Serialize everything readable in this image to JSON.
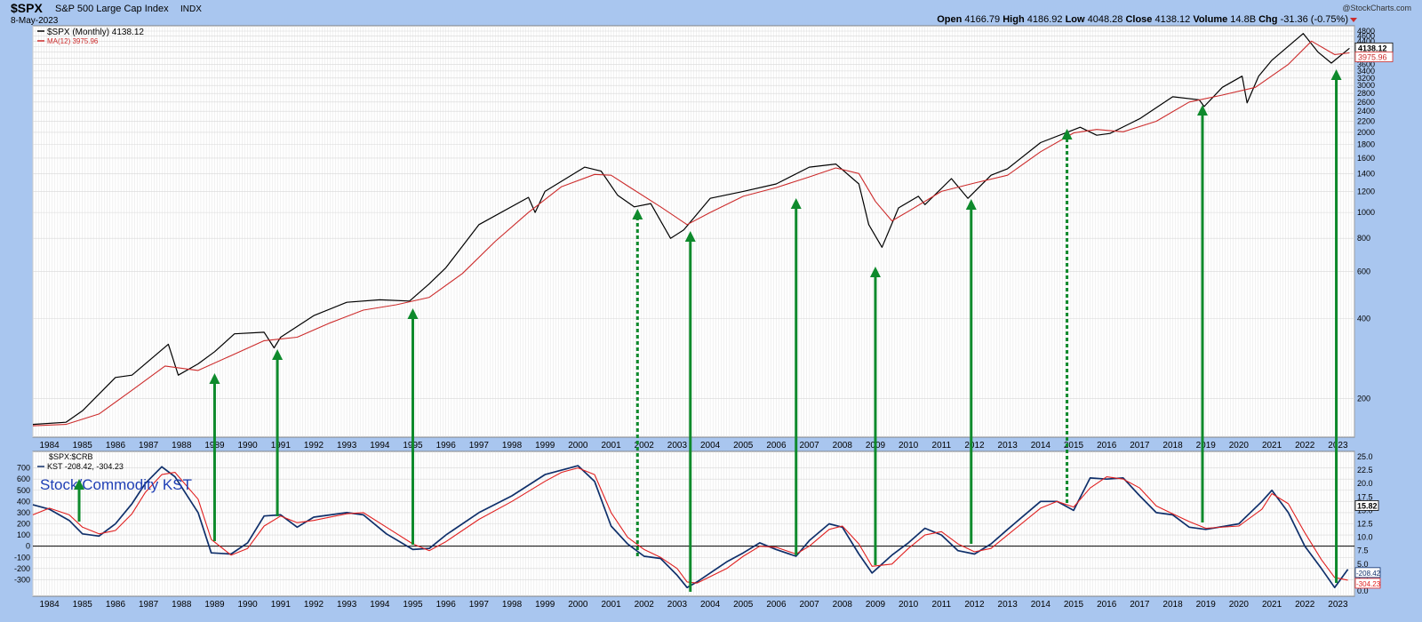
{
  "header": {
    "symbol": "$SPX",
    "name": "S&P 500 Large Cap Index",
    "exchange": "INDX",
    "date": "8-May-2023",
    "copyright": "@StockCharts.com",
    "open_label": "Open",
    "open": "4166.79",
    "high_label": "High",
    "high": "4186.92",
    "low_label": "Low",
    "low": "4048.28",
    "close_label": "Close",
    "close": "4138.12",
    "volume_label": "Volume",
    "volume": "14.8B",
    "chg_label": "Chg",
    "chg": "-31.36 (-0.75%)"
  },
  "colors": {
    "background": "#a9c6ef",
    "plot_bg": "#ffffff",
    "grid": "#d7d7d7",
    "price": "#000000",
    "ma": "#cc2b2b",
    "kst": "#0f2f6a",
    "kst_signal": "#e02020",
    "arrow": "#0e8a2c",
    "annotation": "#1f3fb5"
  },
  "chart_data": [
    {
      "type": "line",
      "panel": "price",
      "scale": "log",
      "legend": [
        {
          "label": "$SPX (Monthly) 4138.12",
          "color": "#000000"
        },
        {
          "label": "MA(12) 3975.96",
          "color": "#cc2b2b"
        }
      ],
      "ylim": [
        150,
        4800
      ],
      "yticks": [
        200,
        400,
        600,
        800,
        1000,
        1200,
        1400,
        1600,
        1800,
        2000,
        2200,
        2400,
        2600,
        2800,
        3000,
        3200,
        3400,
        3600,
        3800,
        4000,
        4200,
        4400,
        4600,
        4800
      ],
      "last_value_tags": [
        {
          "value": "4138.12"
        },
        {
          "value": "3975.96"
        }
      ],
      "xlim": [
        1983.5,
        2023.5
      ],
      "x_tick_labels": [
        "1984",
        "1985",
        "1986",
        "1987",
        "1988",
        "1989",
        "1990",
        "1991",
        "1992",
        "1993",
        "1994",
        "1995",
        "1996",
        "1997",
        "1998",
        "1999",
        "2000",
        "2001",
        "2002",
        "2003",
        "2004",
        "2005",
        "2006",
        "2007",
        "2008",
        "2009",
        "2010",
        "2011",
        "2012",
        "2013",
        "2014",
        "2015",
        "2016",
        "2017",
        "2018",
        "2019",
        "2020",
        "2021",
        "2022",
        "2023"
      ],
      "series": [
        {
          "name": "$SPX (Monthly)",
          "x": [
            1983.5,
            1984.5,
            1985.0,
            1986.0,
            1986.5,
            1987.6,
            1987.9,
            1988.5,
            1989.0,
            1989.6,
            1990.5,
            1990.8,
            1991.0,
            1992.0,
            1993.0,
            1994.0,
            1994.9,
            1995.5,
            1996.0,
            1997.0,
            1998.5,
            1998.7,
            1999.0,
            2000.2,
            2000.7,
            2001.2,
            2001.7,
            2002.2,
            2002.8,
            2003.2,
            2004.0,
            2005.0,
            2006.0,
            2007.0,
            2007.8,
            2008.5,
            2008.8,
            2009.2,
            2009.7,
            2010.3,
            2010.5,
            2011.3,
            2011.8,
            2012.5,
            2013.0,
            2014.0,
            2015.2,
            2015.7,
            2016.1,
            2017.0,
            2018.0,
            2018.8,
            2018.95,
            2019.5,
            2020.1,
            2020.25,
            2020.6,
            2021.0,
            2021.95,
            2022.4,
            2022.8,
            2023.35
          ],
          "values": [
            160,
            163,
            180,
            240,
            245,
            320,
            245,
            270,
            300,
            350,
            355,
            310,
            340,
            410,
            460,
            470,
            465,
            540,
            620,
            900,
            1140,
            1000,
            1200,
            1480,
            1430,
            1160,
            1050,
            1080,
            800,
            860,
            1130,
            1200,
            1280,
            1480,
            1520,
            1280,
            900,
            740,
            1040,
            1150,
            1070,
            1340,
            1130,
            1380,
            1460,
            1830,
            2090,
            1950,
            1980,
            2250,
            2720,
            2650,
            2500,
            2950,
            3250,
            2580,
            3250,
            3730,
            4700,
            4000,
            3640,
            4138
          ]
        },
        {
          "name": "MA(12)",
          "x": [
            1983.5,
            1984.5,
            1985.5,
            1986.5,
            1987.5,
            1988.5,
            1989.5,
            1990.5,
            1991.5,
            1992.5,
            1993.5,
            1994.5,
            1995.5,
            1996.5,
            1997.5,
            1998.5,
            1999.5,
            2000.5,
            2001.0,
            2001.5,
            2002.5,
            2003.3,
            2004.0,
            2005.0,
            2006.0,
            2007.0,
            2007.8,
            2008.5,
            2009.0,
            2009.5,
            2010.0,
            2011.0,
            2012.0,
            2013.0,
            2014.0,
            2015.0,
            2015.7,
            2016.5,
            2017.5,
            2018.5,
            2019.5,
            2020.5,
            2021.5,
            2022.2,
            2022.9,
            2023.35
          ],
          "values": [
            158,
            160,
            175,
            215,
            265,
            255,
            290,
            330,
            340,
            385,
            430,
            450,
            480,
            590,
            780,
            1000,
            1250,
            1390,
            1380,
            1260,
            1050,
            900,
            1000,
            1150,
            1240,
            1360,
            1470,
            1400,
            1100,
            930,
            1010,
            1200,
            1290,
            1380,
            1690,
            1990,
            2050,
            2010,
            2200,
            2600,
            2760,
            2950,
            3600,
            4400,
            3920,
            3976
          ]
        }
      ]
    },
    {
      "type": "line",
      "panel": "indicator",
      "legend": [
        {
          "label": "$SPX:$CRB",
          "color": "#000000"
        },
        {
          "label": "KST -208.42, -304.23",
          "color": "#0f2f6a"
        }
      ],
      "annotation": "Stock/Commodity KST",
      "ylim": [
        -400,
        800
      ],
      "yticks_left": [
        -300,
        -200,
        -100,
        0,
        100,
        200,
        300,
        400,
        500,
        600,
        700
      ],
      "yticks_right": [
        "0.0",
        "2.5",
        "5.0",
        "7.5",
        "10.0",
        "12.5",
        "15.0",
        "17.5",
        "20.0",
        "22.5",
        "25.0"
      ],
      "right_axis_tag": "15.82",
      "last_value_tags": [
        {
          "value": "-208.42"
        },
        {
          "value": "-304.23"
        }
      ],
      "zero_line": 0,
      "series": [
        {
          "name": "KST",
          "x": [
            1983.5,
            1984.0,
            1984.6,
            1985.0,
            1985.5,
            1986.0,
            1986.5,
            1986.9,
            1987.4,
            1987.8,
            1988.5,
            1988.9,
            1989.5,
            1990.0,
            1990.5,
            1991.0,
            1991.5,
            1992.0,
            1993.0,
            1993.5,
            1994.2,
            1995.0,
            1995.5,
            1996.0,
            1997.0,
            1998.0,
            1999.0,
            1999.5,
            2000.0,
            2000.5,
            2001.0,
            2001.5,
            2002.0,
            2002.5,
            2003.0,
            2003.3,
            2003.6,
            2004.5,
            2005.0,
            2005.5,
            2006.0,
            2006.6,
            2007.0,
            2007.6,
            2008.0,
            2008.5,
            2008.9,
            2009.5,
            2010.0,
            2010.5,
            2011.0,
            2011.5,
            2012.0,
            2012.5,
            2013.0,
            2014.0,
            2014.5,
            2015.0,
            2015.5,
            2016.0,
            2016.5,
            2017.0,
            2017.5,
            2018.0,
            2018.5,
            2019.0,
            2020.0,
            2020.7,
            2021.0,
            2021.5,
            2022.0,
            2022.5,
            2022.9,
            2023.3
          ],
          "values": [
            370,
            330,
            230,
            110,
            90,
            200,
            380,
            560,
            710,
            620,
            300,
            -60,
            -70,
            30,
            270,
            280,
            170,
            260,
            300,
            280,
            110,
            -30,
            -20,
            100,
            300,
            450,
            640,
            680,
            720,
            580,
            180,
            20,
            -90,
            -110,
            -260,
            -370,
            -320,
            -140,
            -60,
            30,
            -30,
            -90,
            50,
            200,
            170,
            -70,
            -240,
            -80,
            30,
            160,
            100,
            -40,
            -70,
            20,
            150,
            400,
            400,
            320,
            610,
            600,
            610,
            450,
            300,
            280,
            170,
            150,
            200,
            400,
            500,
            300,
            0,
            -200,
            -370,
            -208
          ]
        },
        {
          "name": "signal",
          "x": [
            1983.5,
            1984.0,
            1984.6,
            1985.0,
            1985.5,
            1986.0,
            1986.5,
            1986.9,
            1987.4,
            1987.8,
            1988.5,
            1988.9,
            1989.5,
            1990.0,
            1990.5,
            1991.0,
            1991.5,
            1992.0,
            1993.0,
            1993.5,
            1994.2,
            1995.0,
            1995.5,
            1996.0,
            1997.0,
            1998.0,
            1999.0,
            1999.5,
            2000.0,
            2000.5,
            2001.0,
            2001.5,
            2002.0,
            2002.5,
            2003.0,
            2003.3,
            2003.6,
            2004.5,
            2005.0,
            2005.5,
            2006.0,
            2006.6,
            2007.0,
            2007.6,
            2008.0,
            2008.5,
            2008.9,
            2009.5,
            2010.0,
            2010.5,
            2011.0,
            2011.5,
            2012.0,
            2012.5,
            2013.0,
            2014.0,
            2014.5,
            2015.0,
            2015.5,
            2016.0,
            2016.5,
            2017.0,
            2017.5,
            2018.0,
            2018.5,
            2019.0,
            2020.0,
            2020.7,
            2021.0,
            2021.5,
            2022.0,
            2022.5,
            2022.9,
            2023.3
          ],
          "values": [
            280,
            340,
            280,
            170,
            110,
            140,
            290,
            480,
            640,
            660,
            420,
            60,
            -80,
            -20,
            180,
            270,
            210,
            230,
            290,
            300,
            170,
            20,
            -40,
            40,
            240,
            400,
            580,
            660,
            700,
            640,
            300,
            80,
            -30,
            -100,
            -200,
            -320,
            -330,
            -200,
            -90,
            0,
            -10,
            -70,
            0,
            150,
            180,
            20,
            -180,
            -160,
            -20,
            100,
            130,
            20,
            -50,
            -20,
            100,
            340,
            400,
            350,
            520,
            620,
            600,
            520,
            360,
            290,
            220,
            160,
            180,
            330,
            470,
            380,
            120,
            -120,
            -280,
            -304
          ]
        }
      ]
    }
  ]
}
